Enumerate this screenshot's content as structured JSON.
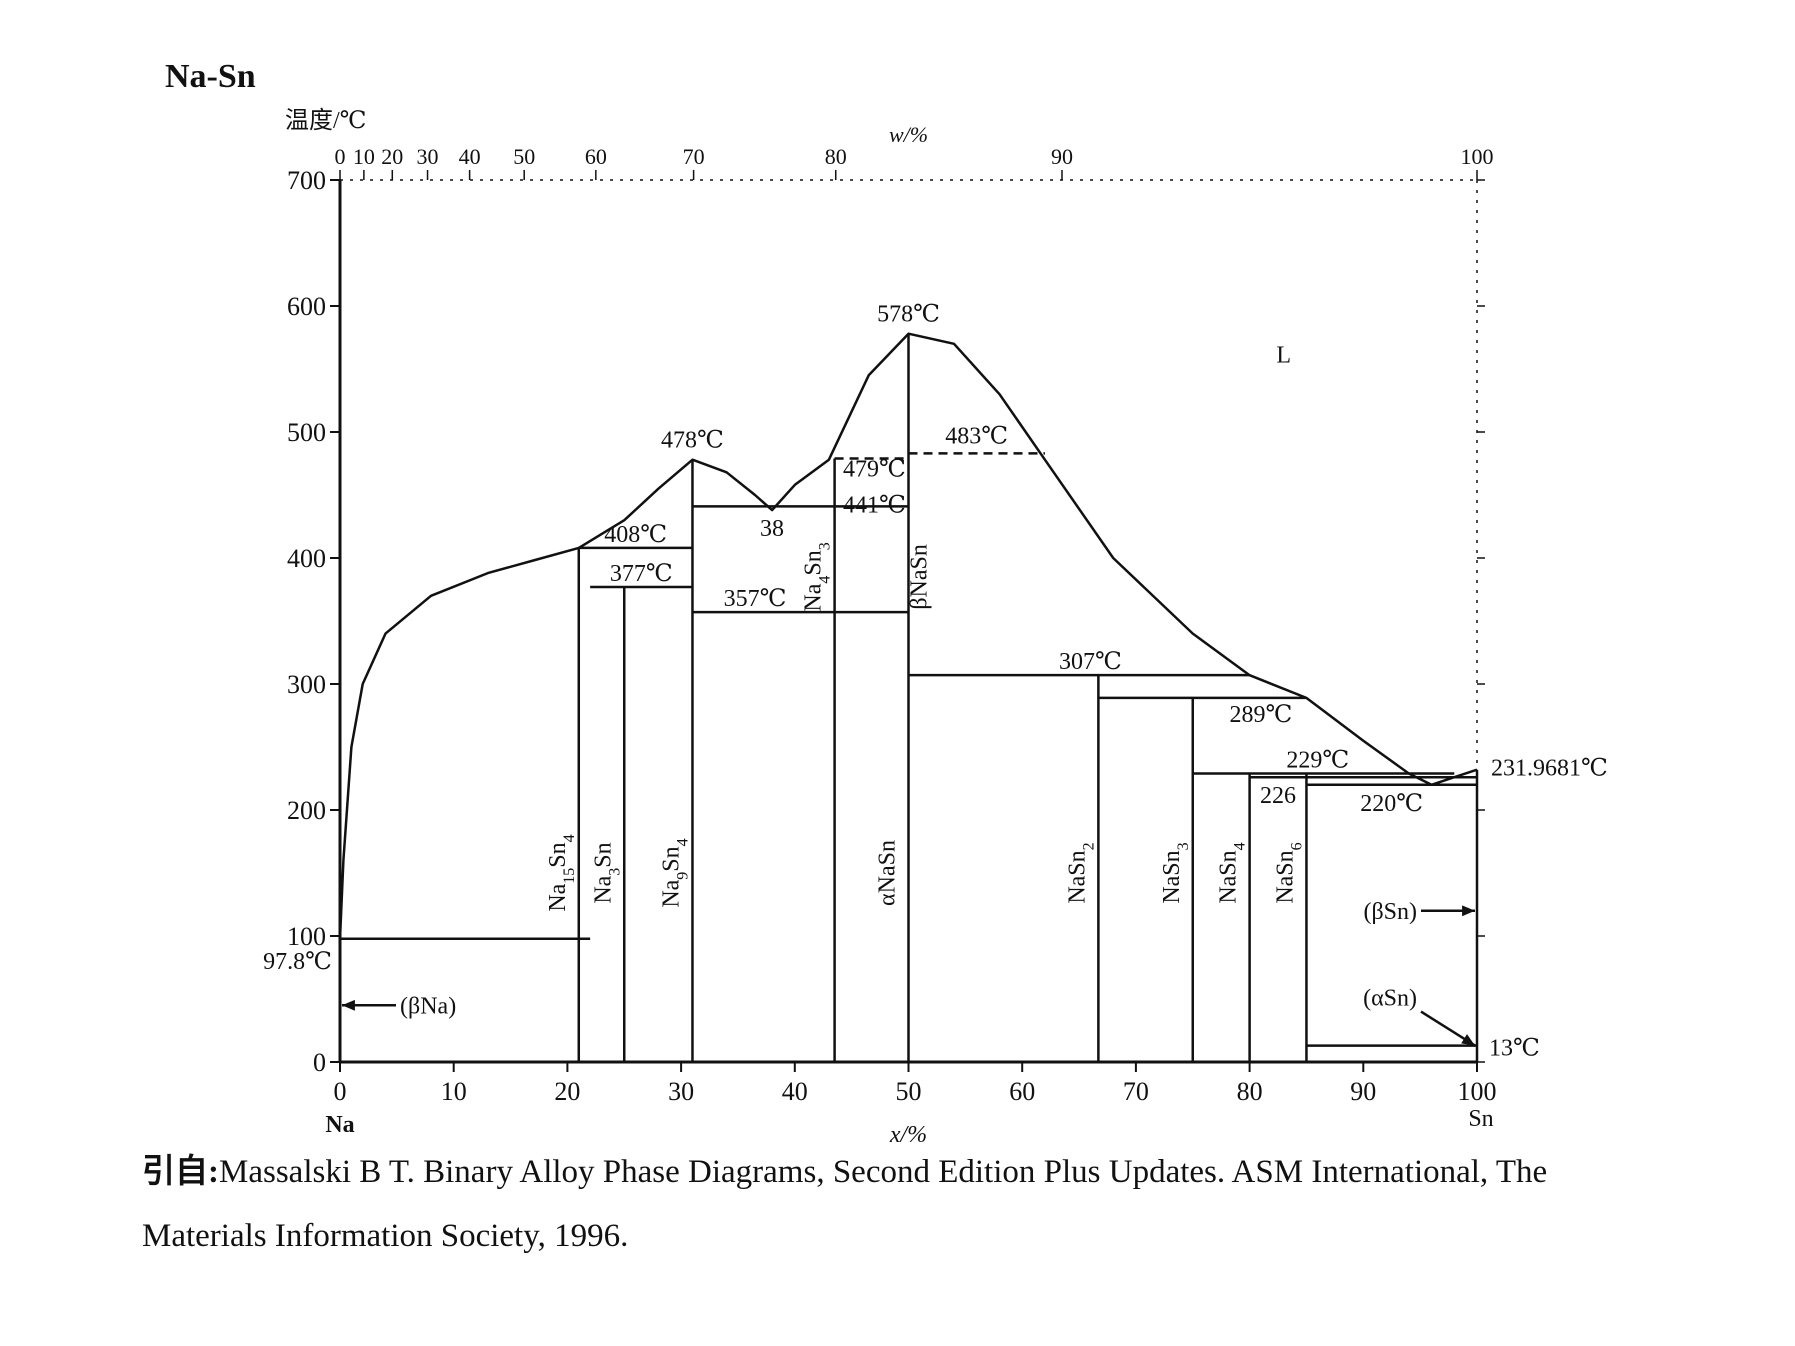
{
  "title": "Na-Sn",
  "citation": {
    "prefix": "引自:",
    "line1": "Massalski B T.  Binary Alloy Phase Diagrams, Second Edition Plus Updates.  ASM International, The",
    "line2": "Materials Information Society, 1996."
  },
  "chart_data": {
    "type": "phase-diagram",
    "title": "Na-Sn",
    "ylabel": "温度/℃",
    "xlabel": "x/%",
    "x2label": "w/%",
    "xlim": [
      0,
      100
    ],
    "ylim": [
      0,
      700
    ],
    "xticks": [
      0,
      10,
      20,
      30,
      40,
      50,
      60,
      70,
      80,
      90,
      100
    ],
    "yticks": [
      0,
      100,
      200,
      300,
      400,
      500,
      600,
      700
    ],
    "x2ticks": [
      {
        "w": 0,
        "x": 0
      },
      {
        "w": 10,
        "x": 2.1
      },
      {
        "w": 20,
        "x": 4.6
      },
      {
        "w": 30,
        "x": 7.7
      },
      {
        "w": 40,
        "x": 11.4
      },
      {
        "w": 50,
        "x": 16.2
      },
      {
        "w": 60,
        "x": 22.5
      },
      {
        "w": 70,
        "x": 31.1
      },
      {
        "w": 80,
        "x": 43.6
      },
      {
        "w": 90,
        "x": 63.5
      },
      {
        "w": 100,
        "x": 100
      }
    ],
    "x2tick_labels": [
      "0",
      "10",
      "20",
      "30",
      "40",
      "50",
      "60",
      "70",
      "80",
      "90",
      "100"
    ],
    "end_labels": {
      "left": "Na",
      "right": "Sn"
    },
    "liquidus": [
      [
        [
          0,
          97.8
        ],
        [
          0.3,
          160
        ],
        [
          1,
          250
        ],
        [
          2,
          300
        ],
        [
          4,
          340
        ],
        [
          8,
          370
        ],
        [
          13,
          388
        ],
        [
          17,
          398
        ],
        [
          21,
          408
        ],
        [
          25,
          430
        ],
        [
          28,
          455
        ],
        [
          31,
          478
        ],
        [
          34,
          468
        ],
        [
          36.5,
          450
        ],
        [
          38,
          438
        ],
        [
          40,
          458
        ],
        [
          43,
          478
        ],
        [
          46.5,
          545
        ],
        [
          50,
          578
        ],
        [
          54,
          570
        ],
        [
          58,
          530
        ],
        [
          62,
          478
        ],
        [
          68,
          400
        ],
        [
          75,
          340
        ],
        [
          80,
          307
        ],
        [
          85,
          289
        ],
        [
          90,
          255
        ],
        [
          94,
          229
        ],
        [
          96,
          220
        ],
        [
          98,
          226
        ],
        [
          100,
          231.9681
        ]
      ]
    ],
    "solid_lines": [
      {
        "x": [
          0,
          22
        ],
        "y": [
          97.8,
          97.8
        ]
      },
      {
        "x": [
          21,
          31
        ],
        "y": [
          408,
          408
        ]
      },
      {
        "x": [
          22,
          31
        ],
        "y": [
          377,
          377
        ]
      },
      {
        "x": [
          31,
          43.5
        ],
        "y": [
          441,
          441
        ]
      },
      {
        "x": [
          31,
          50
        ],
        "y": [
          357,
          357
        ]
      },
      {
        "x": [
          43.5,
          50
        ],
        "y": [
          441,
          441
        ]
      },
      {
        "x": [
          50,
          80
        ],
        "y": [
          307,
          307
        ]
      },
      {
        "x": [
          66.7,
          85
        ],
        "y": [
          289,
          289
        ]
      },
      {
        "x": [
          75,
          98
        ],
        "y": [
          229,
          229
        ]
      },
      {
        "x": [
          80,
          100
        ],
        "y": [
          226,
          226
        ]
      },
      {
        "x": [
          85,
          100
        ],
        "y": [
          220,
          220
        ]
      },
      {
        "x": [
          85,
          100
        ],
        "y": [
          13,
          13
        ]
      }
    ],
    "dashed_lines": [
      {
        "x": [
          43.5,
          50
        ],
        "y": [
          479,
          479
        ]
      },
      {
        "x": [
          50,
          62
        ],
        "y": [
          483,
          483
        ]
      }
    ],
    "compounds": [
      {
        "label": "Na",
        "sub": "15",
        "label2": "Sn",
        "sub2": "4",
        "x": 21
      },
      {
        "label": "Na",
        "sub": "3",
        "label2": "Sn",
        "sub2": "",
        "x": 25
      },
      {
        "label": "Na",
        "sub": "9",
        "label2": "Sn",
        "sub2": "4",
        "x": 31
      },
      {
        "label": "Na",
        "sub": "4",
        "label2": "Sn",
        "sub2": "3",
        "x": 43.5
      },
      {
        "label": "αNaSn",
        "sub": "",
        "label2": "",
        "sub2": "",
        "x": 50
      },
      {
        "label": "βNaSn",
        "sub": "",
        "label2": "",
        "sub2": "",
        "x": 50
      },
      {
        "label": "NaSn",
        "sub": "2",
        "label2": "",
        "sub2": "",
        "x": 66.7
      },
      {
        "label": "NaSn",
        "sub": "3",
        "label2": "",
        "sub2": "",
        "x": 75
      },
      {
        "label": "NaSn",
        "sub": "4",
        "label2": "",
        "sub2": "",
        "x": 80
      },
      {
        "label": "NaSn",
        "sub": "6",
        "label2": "",
        "sub2": "",
        "x": 85
      }
    ],
    "annotations": [
      {
        "text": "578℃",
        "x": 50,
        "y": 578
      },
      {
        "text": "478℃",
        "x": 31,
        "y": 478
      },
      {
        "text": "483℃",
        "x": 56,
        "y": 483
      },
      {
        "text": "479℃",
        "x": 47,
        "y": 479
      },
      {
        "text": "441℃",
        "x": 47,
        "y": 441
      },
      {
        "text": "38",
        "x": 38,
        "y": 438
      },
      {
        "text": "408℃",
        "x": 26,
        "y": 408
      },
      {
        "text": "377℃",
        "x": 26.5,
        "y": 377
      },
      {
        "text": "357℃",
        "x": 36.5,
        "y": 357
      },
      {
        "text": "307℃",
        "x": 66,
        "y": 307
      },
      {
        "text": "289℃",
        "x": 81,
        "y": 289
      },
      {
        "text": "229℃",
        "x": 86,
        "y": 229
      },
      {
        "text": "226",
        "x": 82.5,
        "y": 226
      },
      {
        "text": "220℃",
        "x": 92.5,
        "y": 220
      },
      {
        "text": "231.9681℃",
        "x": 100,
        "y": 231.9681
      },
      {
        "text": "97.8℃",
        "x": 0,
        "y": 97.8
      },
      {
        "text": "13℃",
        "x": 100,
        "y": 13
      },
      {
        "text": "L",
        "x": 83,
        "y": 555
      },
      {
        "text": "(βNa)",
        "x": 0,
        "y": 45
      },
      {
        "text": "(βSn)",
        "x": 100,
        "y": 120
      },
      {
        "text": "(αSn)",
        "x": 100,
        "y": 45
      }
    ]
  }
}
